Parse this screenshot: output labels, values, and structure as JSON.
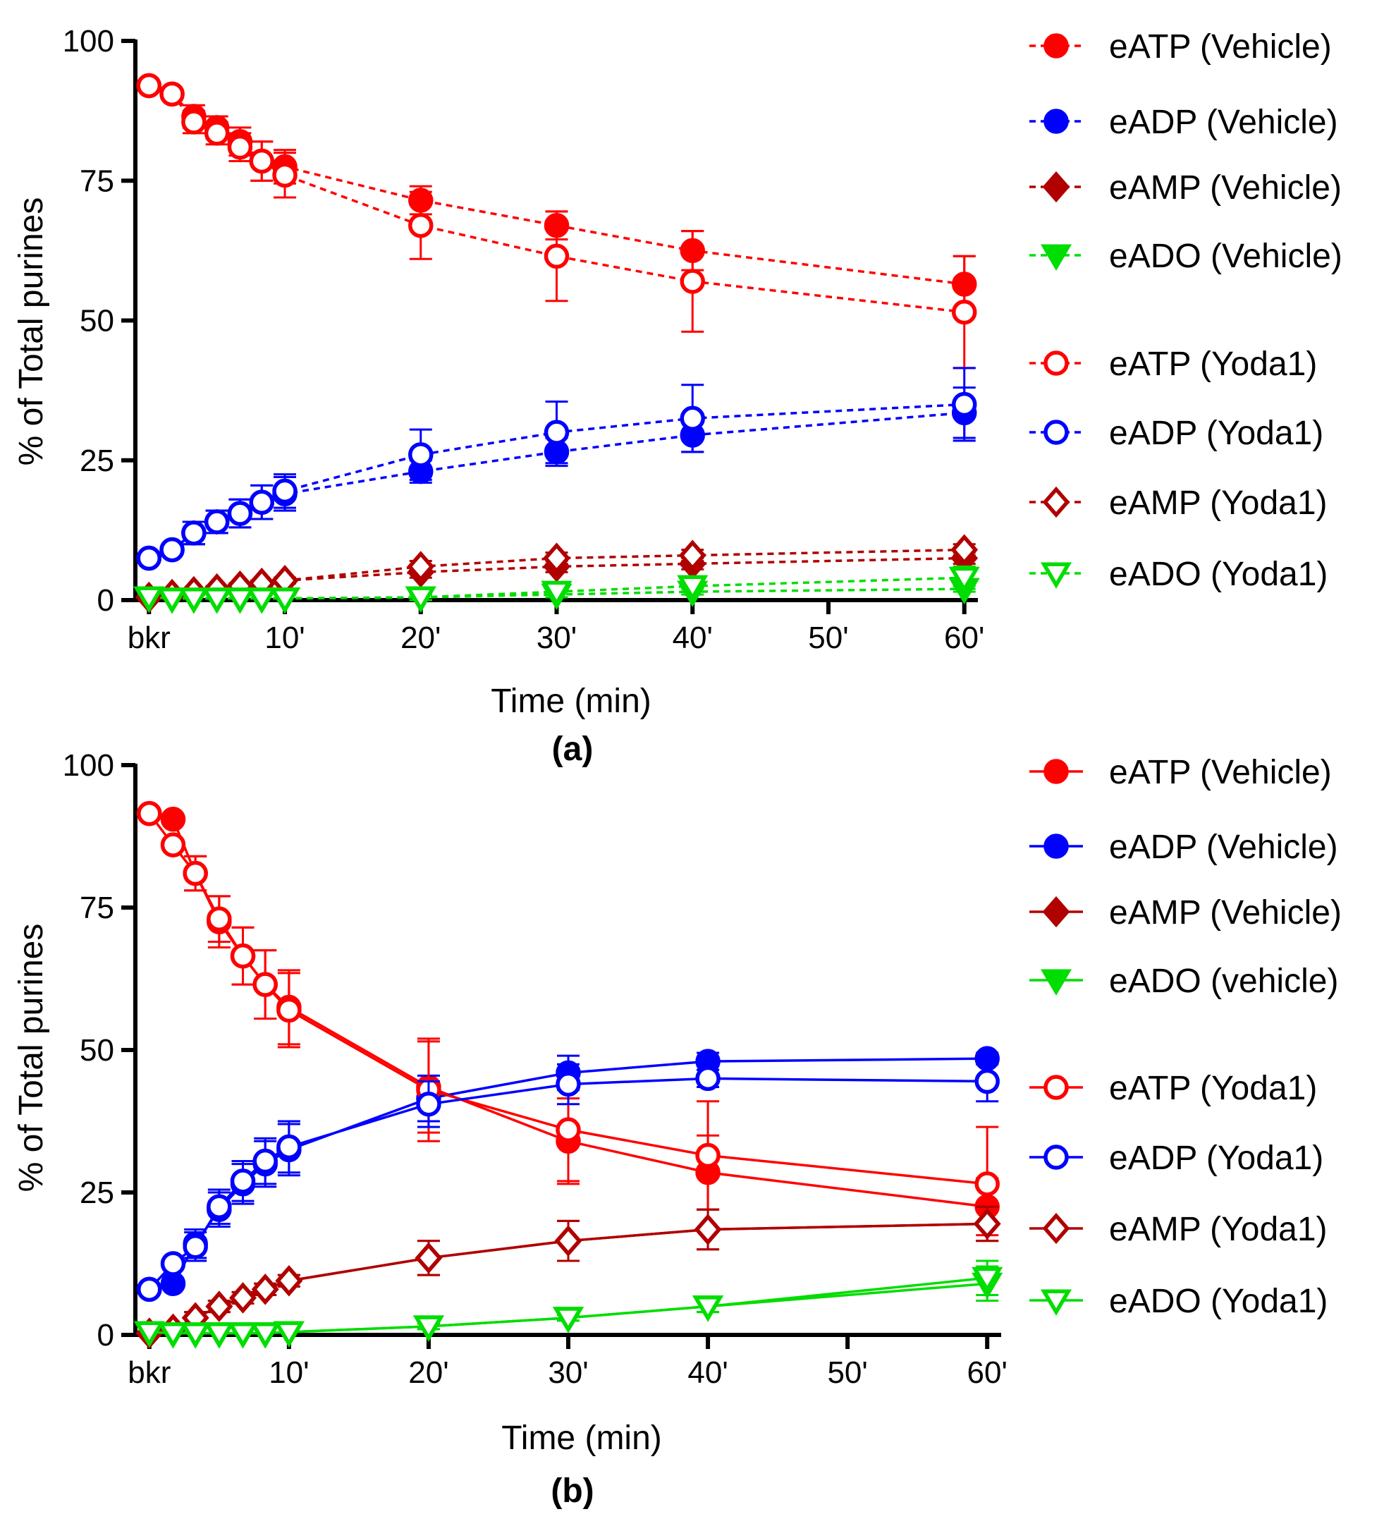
{
  "chart_data": [
    {
      "type": "line",
      "panel_label": "(a)",
      "line_style": "dashed",
      "xlabel": "Time (min)",
      "ylabel": "% of Total purines",
      "ylim": [
        0,
        100
      ],
      "xlim": [
        -1,
        61
      ],
      "yticks": [
        0,
        25,
        50,
        75,
        100
      ],
      "xticks": [
        {
          "value": 0,
          "label": "bkr"
        },
        {
          "value": 10,
          "label": "10'"
        },
        {
          "value": 20,
          "label": "20'"
        },
        {
          "value": 30,
          "label": "30'"
        },
        {
          "value": 40,
          "label": "40'"
        },
        {
          "value": 50,
          "label": "50'"
        },
        {
          "value": 60,
          "label": "60'"
        }
      ],
      "x": [
        0,
        1.7,
        3.3,
        5,
        6.7,
        8.3,
        10,
        20,
        30,
        40,
        60
      ],
      "series": [
        {
          "name": "eATP (Vehicle)",
          "color": "#ff0000",
          "marker": "circle",
          "filled": true,
          "values": [
            92,
            90.5,
            86.5,
            84.5,
            82,
            78.5,
            77.5,
            71.5,
            67,
            62.5,
            56.5
          ],
          "errors": [
            0,
            0,
            2,
            2,
            2.5,
            3.5,
            3,
            2.5,
            2.5,
            3.5,
            5
          ]
        },
        {
          "name": "eADP (Vehicle)",
          "color": "#0000ff",
          "marker": "circle",
          "filled": true,
          "values": [
            7.5,
            9,
            12,
            14,
            15.5,
            17.5,
            19,
            23,
            26.5,
            29.5,
            33.5
          ],
          "errors": [
            0,
            0,
            2,
            2,
            2.5,
            3,
            3,
            2,
            2.5,
            3,
            4.5
          ]
        },
        {
          "name": "eAMP (Vehicle)",
          "color": "#b00000",
          "marker": "diamond",
          "filled": true,
          "values": [
            0.5,
            1,
            1.5,
            2,
            2.5,
            3,
            3.5,
            5,
            6,
            6.5,
            7.5
          ],
          "errors": [
            0,
            0,
            0.5,
            0.5,
            0.5,
            0.5,
            0.5,
            1,
            1,
            1,
            1
          ]
        },
        {
          "name": "eADO (Vehicle)",
          "color": "#00dd00",
          "marker": "triangle-down",
          "filled": true,
          "values": [
            0.5,
            0.3,
            0.3,
            0.3,
            0.3,
            0.3,
            0.3,
            0.5,
            1,
            1.5,
            2
          ],
          "errors": [
            0,
            0,
            0,
            0,
            0,
            0,
            0,
            0.5,
            0.5,
            0.5,
            0.5
          ]
        },
        {
          "name": "eATP (Yoda1)",
          "color": "#ff0000",
          "marker": "circle",
          "filled": false,
          "values": [
            92,
            90.5,
            85.5,
            83.5,
            81,
            78.5,
            76,
            67,
            61.5,
            57,
            51.5
          ],
          "errors": [
            0,
            0,
            2,
            2,
            2.5,
            3.5,
            4,
            6,
            8,
            9,
            10
          ]
        },
        {
          "name": "eADP (Yoda1)",
          "color": "#0000ff",
          "marker": "circle",
          "filled": false,
          "values": [
            7.5,
            9,
            12,
            14,
            15.5,
            17.5,
            19.5,
            26,
            30,
            32.5,
            35
          ],
          "errors": [
            0,
            0,
            2,
            2,
            2.5,
            3,
            3,
            4.5,
            5.5,
            6,
            6.5
          ]
        },
        {
          "name": "eAMP (Yoda1)",
          "color": "#b00000",
          "marker": "diamond",
          "filled": false,
          "values": [
            0.5,
            1,
            1.5,
            2,
            2.5,
            3,
            3.5,
            6,
            7.5,
            8,
            9
          ],
          "errors": [
            0,
            0,
            0.5,
            0.5,
            0.5,
            0.5,
            0.5,
            1,
            1,
            1,
            1
          ]
        },
        {
          "name": "eADO (Yoda1)",
          "color": "#00dd00",
          "marker": "triangle-down",
          "filled": false,
          "values": [
            0.5,
            0.3,
            0.3,
            0.3,
            0.3,
            0.3,
            0.3,
            0.5,
            1.5,
            2.5,
            4
          ],
          "errors": [
            0,
            0,
            0,
            0,
            0,
            0,
            0,
            0.5,
            1,
            1,
            2
          ]
        }
      ]
    },
    {
      "type": "line",
      "panel_label": "(b)",
      "line_style": "solid",
      "xlabel": "Time (min)",
      "ylabel": "% of Total purines",
      "ylim": [
        0,
        100
      ],
      "xlim": [
        -1,
        61
      ],
      "yticks": [
        0,
        25,
        50,
        75,
        100
      ],
      "xticks": [
        {
          "value": 0,
          "label": "bkr"
        },
        {
          "value": 10,
          "label": "10'"
        },
        {
          "value": 20,
          "label": "20'"
        },
        {
          "value": 30,
          "label": "30'"
        },
        {
          "value": 40,
          "label": "40'"
        },
        {
          "value": 50,
          "label": "50'"
        },
        {
          "value": 60,
          "label": "60'"
        }
      ],
      "x": [
        0,
        1.7,
        3.3,
        5,
        6.7,
        8.3,
        10,
        20,
        30,
        40,
        60
      ],
      "series": [
        {
          "name": "eATP (Vehicle)",
          "color": "#ff0000",
          "marker": "circle",
          "filled": true,
          "values": [
            91.5,
            90.5,
            81,
            72.5,
            66.5,
            61.5,
            57.5,
            43.5,
            34,
            28.5,
            22.5
          ],
          "errors": [
            0,
            0,
            3,
            4.5,
            5,
            6,
            6.5,
            8,
            7.5,
            6.5,
            5
          ]
        },
        {
          "name": "eADP (Vehicle)",
          "color": "#0000ff",
          "marker": "circle",
          "filled": true,
          "values": [
            8,
            9,
            16,
            22,
            26.5,
            30,
            32.5,
            41.5,
            46,
            48,
            48.5
          ],
          "errors": [
            0,
            0,
            2.5,
            3,
            3.5,
            4,
            4.5,
            4,
            3,
            1.5,
            1
          ]
        },
        {
          "name": "eAMP (Vehicle)",
          "color": "#b00000",
          "marker": "diamond",
          "filled": true,
          "values": [
            0.3,
            1,
            3,
            5,
            6.5,
            8,
            9.5,
            13.5,
            16.5,
            18.5,
            19.5
          ],
          "errors": [
            0,
            0,
            1,
            1,
            1,
            1,
            1,
            3,
            3.5,
            3.5,
            3
          ]
        },
        {
          "name": "eADO (vehicle)",
          "color": "#00dd00",
          "marker": "triangle-down",
          "filled": true,
          "values": [
            0.5,
            0.3,
            0.3,
            0.3,
            0.3,
            0.3,
            0.5,
            1.5,
            3,
            5,
            9
          ],
          "errors": [
            0,
            0,
            0,
            0,
            0,
            0,
            0,
            0.5,
            0.5,
            1,
            3
          ]
        },
        {
          "name": "eATP (Yoda1)",
          "color": "#ff0000",
          "marker": "circle",
          "filled": false,
          "values": [
            91.5,
            86,
            81,
            73,
            66.5,
            61.5,
            57,
            43,
            36,
            31.5,
            26.5
          ],
          "errors": [
            0,
            0,
            3,
            4,
            5,
            6,
            6.5,
            9,
            9,
            9.5,
            10
          ]
        },
        {
          "name": "eADP (Yoda1)",
          "color": "#0000ff",
          "marker": "circle",
          "filled": false,
          "values": [
            8,
            12.5,
            15.5,
            22.5,
            27,
            30.5,
            33,
            40.5,
            44,
            45,
            44.5
          ],
          "errors": [
            0,
            0,
            2.5,
            3,
            3.5,
            4,
            4.5,
            4,
            3.5,
            1.5,
            3.5
          ]
        },
        {
          "name": "eAMP (Yoda1)",
          "color": "#b00000",
          "marker": "diamond",
          "filled": false,
          "values": [
            0.3,
            1,
            3,
            5,
            6.5,
            8,
            9.5,
            13.5,
            16.5,
            18.5,
            19.5
          ],
          "errors": [
            0,
            0,
            1,
            1,
            1,
            1,
            1,
            3,
            3.5,
            3.5,
            3
          ]
        },
        {
          "name": "eADO (Yoda1)",
          "color": "#00dd00",
          "marker": "triangle-down",
          "filled": false,
          "values": [
            0.5,
            0.3,
            0.3,
            0.3,
            0.3,
            0.3,
            0.5,
            1.5,
            3,
            5,
            10
          ],
          "errors": [
            0,
            0,
            0,
            0,
            0,
            0,
            0,
            0.5,
            0.5,
            1,
            3
          ]
        }
      ]
    }
  ]
}
